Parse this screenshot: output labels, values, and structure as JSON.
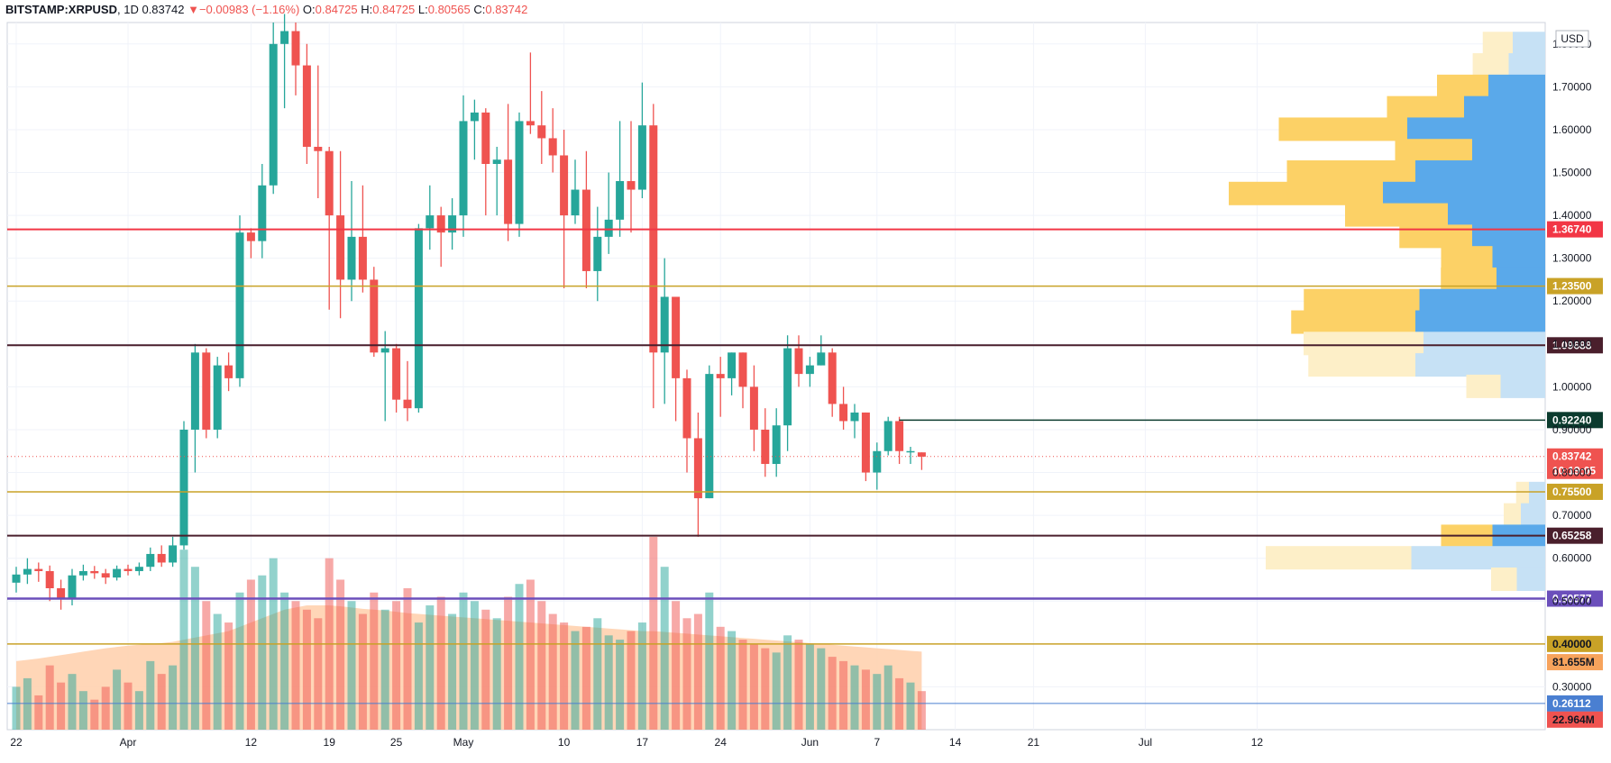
{
  "header": {
    "symbol": "BITSTAMP:XRPUSD",
    "interval": "1D",
    "last": "0.83742",
    "change": "−0.00983 (−1.16%)",
    "open_label": "O:",
    "open": "0.84725",
    "high_label": "H:",
    "high": "0.84725",
    "low_label": "L:",
    "low": "0.80565",
    "close_label": "C:",
    "close": "0.83742"
  },
  "colors": {
    "up": "#26a69a",
    "down": "#ef5350",
    "vp_up": "#5aa9ea",
    "vp_down": "#fcd166",
    "vp_up_faint": "#c6e1f5",
    "vp_down_faint": "#fdefc8",
    "ma_fill": "#ffcfaa"
  },
  "chart_data": {
    "type": "candlestick",
    "currency": "USD",
    "y_range": [
      0.2,
      1.85
    ],
    "price_ticks": [
      "0.30000",
      "0.40000",
      "0.50000",
      "0.60000",
      "0.70000",
      "0.80000",
      "0.90000",
      "1.00000",
      "1.10000",
      "1.20000",
      "1.30000",
      "1.40000",
      "1.50000",
      "1.60000",
      "1.70000",
      "1.80000"
    ],
    "x_labels": [
      "22",
      "Apr",
      "12",
      "19",
      "25",
      "May",
      "10",
      "17",
      "24",
      "Jun",
      "7",
      "14",
      "21",
      "Jul",
      "12"
    ],
    "x_label_days": [
      0,
      10,
      21,
      28,
      34,
      40,
      49,
      56,
      63,
      71,
      77,
      84,
      91,
      101,
      111
    ],
    "candles": [
      [
        0.543,
        0.562,
        0.58,
        0.52
      ],
      [
        0.562,
        0.575,
        0.6,
        0.54
      ],
      [
        0.575,
        0.57,
        0.59,
        0.545
      ],
      [
        0.57,
        0.53,
        0.583,
        0.5
      ],
      [
        0.53,
        0.505,
        0.55,
        0.48
      ],
      [
        0.505,
        0.56,
        0.575,
        0.49
      ],
      [
        0.56,
        0.57,
        0.585,
        0.548
      ],
      [
        0.57,
        0.565,
        0.582,
        0.552
      ],
      [
        0.565,
        0.555,
        0.575,
        0.54
      ],
      [
        0.555,
        0.575,
        0.583,
        0.548
      ],
      [
        0.575,
        0.57,
        0.585,
        0.56
      ],
      [
        0.57,
        0.58,
        0.59,
        0.56
      ],
      [
        0.58,
        0.61,
        0.625,
        0.57
      ],
      [
        0.61,
        0.59,
        0.63,
        0.58
      ],
      [
        0.59,
        0.63,
        0.65,
        0.58
      ],
      [
        0.63,
        0.9,
        0.92,
        0.62
      ],
      [
        0.9,
        1.08,
        1.1,
        0.8
      ],
      [
        1.08,
        0.9,
        1.09,
        0.88
      ],
      [
        0.9,
        1.05,
        1.07,
        0.88
      ],
      [
        1.05,
        1.02,
        1.08,
        0.99
      ],
      [
        1.02,
        1.36,
        1.4,
        1.0
      ],
      [
        1.36,
        1.34,
        1.37,
        1.3
      ],
      [
        1.34,
        1.47,
        1.52,
        1.3
      ],
      [
        1.47,
        1.8,
        1.85,
        1.45
      ],
      [
        1.8,
        1.83,
        1.87,
        1.65
      ],
      [
        1.83,
        1.75,
        1.85,
        1.68
      ],
      [
        1.75,
        1.56,
        1.8,
        1.52
      ],
      [
        1.56,
        1.55,
        1.75,
        1.44
      ],
      [
        1.55,
        1.4,
        1.56,
        1.18
      ],
      [
        1.4,
        1.25,
        1.55,
        1.16
      ],
      [
        1.25,
        1.35,
        1.48,
        1.2
      ],
      [
        1.35,
        1.25,
        1.47,
        1.22
      ],
      [
        1.25,
        1.08,
        1.28,
        1.07
      ],
      [
        1.08,
        1.09,
        1.13,
        0.92
      ],
      [
        1.09,
        0.97,
        1.1,
        0.94
      ],
      [
        0.97,
        0.95,
        1.06,
        0.92
      ],
      [
        0.95,
        1.37,
        1.38,
        0.94
      ],
      [
        1.37,
        1.4,
        1.47,
        1.32
      ],
      [
        1.4,
        1.36,
        1.42,
        1.28
      ],
      [
        1.36,
        1.4,
        1.44,
        1.32
      ],
      [
        1.4,
        1.62,
        1.68,
        1.35
      ],
      [
        1.62,
        1.64,
        1.67,
        1.53
      ],
      [
        1.64,
        1.52,
        1.65,
        1.4
      ],
      [
        1.52,
        1.53,
        1.56,
        1.4
      ],
      [
        1.53,
        1.38,
        1.66,
        1.34
      ],
      [
        1.38,
        1.62,
        1.64,
        1.35
      ],
      [
        1.62,
        1.61,
        1.78,
        1.59
      ],
      [
        1.61,
        1.58,
        1.69,
        1.52
      ],
      [
        1.58,
        1.54,
        1.65,
        1.5
      ],
      [
        1.54,
        1.4,
        1.6,
        1.23
      ],
      [
        1.4,
        1.46,
        1.53,
        1.38
      ],
      [
        1.46,
        1.27,
        1.55,
        1.23
      ],
      [
        1.27,
        1.35,
        1.42,
        1.2
      ],
      [
        1.35,
        1.39,
        1.5,
        1.31
      ],
      [
        1.39,
        1.48,
        1.62,
        1.35
      ],
      [
        1.48,
        1.46,
        1.62,
        1.36
      ],
      [
        1.46,
        1.61,
        1.71,
        1.44
      ],
      [
        1.61,
        1.08,
        1.66,
        0.95
      ],
      [
        1.08,
        1.21,
        1.3,
        0.96
      ],
      [
        1.21,
        1.02,
        1.21,
        0.92
      ],
      [
        1.02,
        0.88,
        1.04,
        0.8
      ],
      [
        0.88,
        0.74,
        0.94,
        0.65
      ],
      [
        0.74,
        1.03,
        1.05,
        0.74
      ],
      [
        1.03,
        1.02,
        1.07,
        0.93
      ],
      [
        1.02,
        1.08,
        1.08,
        0.98
      ],
      [
        1.08,
        1.0,
        1.08,
        0.95
      ],
      [
        1.0,
        0.9,
        1.05,
        0.85
      ],
      [
        0.9,
        0.82,
        0.95,
        0.79
      ],
      [
        0.82,
        0.91,
        0.95,
        0.79
      ],
      [
        0.91,
        1.09,
        1.12,
        0.85
      ],
      [
        1.09,
        1.03,
        1.12,
        1.0
      ],
      [
        1.03,
        1.05,
        1.07,
        1.0
      ],
      [
        1.05,
        1.08,
        1.12,
        1.05
      ],
      [
        1.08,
        0.96,
        1.09,
        0.93
      ],
      [
        0.96,
        0.92,
        1.0,
        0.9
      ],
      [
        0.92,
        0.94,
        0.96,
        0.88
      ],
      [
        0.94,
        0.8,
        0.94,
        0.78
      ],
      [
        0.8,
        0.85,
        0.87,
        0.76
      ],
      [
        0.85,
        0.92,
        0.93,
        0.84
      ],
      [
        0.92,
        0.85,
        0.93,
        0.82
      ],
      [
        0.85,
        0.85,
        0.86,
        0.82
      ],
      [
        0.847,
        0.837,
        0.847,
        0.806
      ]
    ],
    "volume_ma": [
      0.36,
      0.363,
      0.366,
      0.37,
      0.374,
      0.378,
      0.382,
      0.386,
      0.39,
      0.393,
      0.396,
      0.398,
      0.4,
      0.402,
      0.405,
      0.41,
      0.415,
      0.42,
      0.425,
      0.43,
      0.44,
      0.45,
      0.46,
      0.47,
      0.48,
      0.485,
      0.49,
      0.49,
      0.49,
      0.488,
      0.485,
      0.482,
      0.48,
      0.478,
      0.475,
      0.472,
      0.47,
      0.468,
      0.466,
      0.464,
      0.462,
      0.46,
      0.458,
      0.456,
      0.454,
      0.452,
      0.45,
      0.448,
      0.446,
      0.444,
      0.442,
      0.44,
      0.438,
      0.436,
      0.434,
      0.432,
      0.43,
      0.43,
      0.428,
      0.426,
      0.424,
      0.422,
      0.42,
      0.418,
      0.416,
      0.414,
      0.412,
      0.41,
      0.408,
      0.406,
      0.404,
      0.402,
      0.4,
      0.398,
      0.396,
      0.394,
      0.392,
      0.39,
      0.388,
      0.386,
      0.384,
      0.382
    ],
    "volumes": [
      0.3,
      0.32,
      0.28,
      0.35,
      0.31,
      0.33,
      0.29,
      0.27,
      0.3,
      0.34,
      0.31,
      0.29,
      0.36,
      0.33,
      0.35,
      0.62,
      0.58,
      0.5,
      0.47,
      0.45,
      0.52,
      0.55,
      0.56,
      0.6,
      0.52,
      0.5,
      0.48,
      0.46,
      0.6,
      0.55,
      0.5,
      0.47,
      0.52,
      0.48,
      0.5,
      0.53,
      0.45,
      0.49,
      0.51,
      0.47,
      0.52,
      0.5,
      0.48,
      0.46,
      0.51,
      0.54,
      0.55,
      0.5,
      0.47,
      0.45,
      0.43,
      0.44,
      0.46,
      0.42,
      0.41,
      0.43,
      0.45,
      0.65,
      0.58,
      0.5,
      0.46,
      0.47,
      0.52,
      0.44,
      0.43,
      0.41,
      0.4,
      0.39,
      0.38,
      0.42,
      0.41,
      0.4,
      0.39,
      0.37,
      0.36,
      0.35,
      0.34,
      0.33,
      0.35,
      0.32,
      0.31,
      0.29
    ],
    "volume_profile": [
      {
        "price": 1.8,
        "up": 40,
        "down": 35,
        "faint": true
      },
      {
        "price": 1.75,
        "up": 45,
        "down": 42,
        "faint": true
      },
      {
        "price": 1.7,
        "up": 70,
        "down": 60,
        "faint": false
      },
      {
        "price": 1.65,
        "up": 100,
        "down": 90,
        "faint": false
      },
      {
        "price": 1.6,
        "up": 170,
        "down": 150,
        "faint": false
      },
      {
        "price": 1.55,
        "up": 90,
        "down": 90,
        "faint": false
      },
      {
        "price": 1.5,
        "up": 160,
        "down": 150,
        "faint": false
      },
      {
        "price": 1.45,
        "up": 200,
        "down": 180,
        "faint": false
      },
      {
        "price": 1.4,
        "up": 120,
        "down": 120,
        "faint": false
      },
      {
        "price": 1.35,
        "up": 90,
        "down": 85,
        "faint": false
      },
      {
        "price": 1.3,
        "up": 65,
        "down": 60,
        "faint": false
      },
      {
        "price": 1.25,
        "up": 60,
        "down": 65,
        "faint": false
      },
      {
        "price": 1.2,
        "up": 155,
        "down": 135,
        "faint": false
      },
      {
        "price": 1.15,
        "up": 160,
        "down": 145,
        "faint": false
      },
      {
        "price": 1.1,
        "up": 150,
        "down": 140,
        "faint": true
      },
      {
        "price": 1.05,
        "up": 160,
        "down": 125,
        "faint": true
      },
      {
        "price": 1.0,
        "up": 55,
        "down": 40,
        "faint": true
      },
      {
        "price": 0.75,
        "up": 20,
        "down": 15,
        "faint": true
      },
      {
        "price": 0.7,
        "up": 30,
        "down": 20,
        "faint": true
      },
      {
        "price": 0.65,
        "up": 65,
        "down": 60,
        "faint": false
      },
      {
        "price": 0.6,
        "up": 165,
        "down": 170,
        "faint": true
      },
      {
        "price": 0.55,
        "up": 35,
        "down": 30,
        "faint": true
      }
    ],
    "horizontal_levels": [
      {
        "price": 1.3674,
        "label": "1.36740",
        "color": "#f23645",
        "text": "#ffffff",
        "width": 2,
        "full": true
      },
      {
        "price": 1.235,
        "label": "1.23500",
        "color": "#c9a227",
        "text": "#ffffff",
        "width": 1.5,
        "full": true
      },
      {
        "price": 1.09688,
        "label": "1.09688",
        "color": "#4a1f2c",
        "text": "#ffffff",
        "width": 2,
        "full": true
      },
      {
        "price": 0.9224,
        "label": "0.92240",
        "color": "#0b3b2e",
        "text": "#ffffff",
        "width": 1.5,
        "full": false
      },
      {
        "price": 0.755,
        "label": "0.75500",
        "color": "#c9a227",
        "text": "#ffffff",
        "width": 1.5,
        "full": true
      },
      {
        "price": 0.65258,
        "label": "0.65258",
        "color": "#4a1f2c",
        "text": "#ffffff",
        "width": 2,
        "full": true
      },
      {
        "price": 0.50577,
        "label": "0.50577",
        "color": "#6b4fbb",
        "text": "#ffffff",
        "width": 2.5,
        "full": true
      },
      {
        "price": 0.4,
        "label": "0.40000",
        "color": "#c9a227",
        "text": "#131722",
        "width": 1.5,
        "full": true
      },
      {
        "price": 0.26112,
        "label": "0.26112",
        "color": "#4a7fd1",
        "text": "#ffffff",
        "width": 1,
        "full": true
      }
    ],
    "current_price": {
      "price": 0.83742,
      "label": "0.83742",
      "countdown": "10:19:05",
      "color": "#ef5350"
    },
    "volume_labels": [
      {
        "label": "81.655M",
        "color": "#f7a35c",
        "price": 0.3575
      },
      {
        "label": "22.964M",
        "color": "#ef5350",
        "price": 0.2235
      }
    ]
  }
}
